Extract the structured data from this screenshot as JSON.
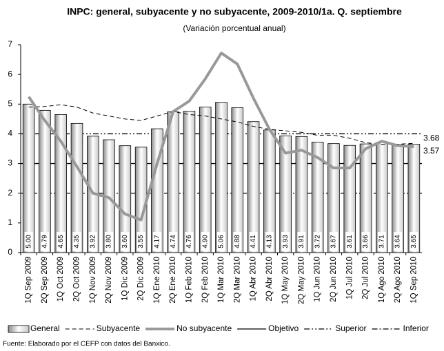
{
  "chart_data": {
    "type": "bar-line",
    "title": "INPC: general, subyacente y no subyacente, 2009-2010/1a. Q. septiembre",
    "subtitle": "(Variación porcentual anual)",
    "source": "Fuente: Elaborado por el CEFP con  datos del Banxico.",
    "categories": [
      "1Q Sep 2009",
      "2Q Sep 2009",
      "1Q Oct 2009",
      "2Q Oct 2009",
      "1Q Nov 2009",
      "2Q Nov 2009",
      "1Q Dic 2009",
      "2Q Dic 2009",
      "1Q Ene 2010",
      "2Q Ene 2010",
      "1Q Feb 2010",
      "2Q Feb 2010",
      "1Q Mar 2010",
      "2Q Mar 2010",
      "1Q Abr 2010",
      "2Q Abr 2010",
      "1Q May 2010",
      "2Q May 2010",
      "1Q Jun 2010",
      "2Q Jun 2010",
      "1Q Jul 2010",
      "2Q Jul 2010",
      "1Q Ago 2010",
      "2Q Ago 2010",
      "1Q Sep 2010"
    ],
    "series": [
      {
        "name": "General",
        "kind": "bar",
        "color": "#bbbbbb",
        "values": [
          5.0,
          4.79,
          4.65,
          4.35,
          3.92,
          3.8,
          3.6,
          3.55,
          4.17,
          4.74,
          4.76,
          4.9,
          5.06,
          4.88,
          4.41,
          4.13,
          3.93,
          3.91,
          3.72,
          3.67,
          3.61,
          3.66,
          3.71,
          3.64,
          3.65
        ],
        "value_labels": [
          "5.00",
          "4.79",
          "4.65",
          "4.35",
          "3.92",
          "3.80",
          "3.60",
          "3.55",
          "4.17",
          "4.74",
          "4.76",
          "4.90",
          "5.06",
          "4.88",
          "4.41",
          "4.13",
          "3.93",
          "3.91",
          "3.72",
          "3.67",
          "3.61",
          "3.66",
          "3.71",
          "3.64",
          "3.65"
        ]
      },
      {
        "name": "Subyacente",
        "kind": "line",
        "color": "#000000",
        "dash": "6 4",
        "width": 1,
        "end_label": true,
        "values": [
          4.9,
          4.92,
          4.98,
          4.9,
          4.7,
          4.6,
          4.5,
          4.45,
          4.6,
          4.75,
          4.65,
          4.6,
          4.5,
          4.4,
          4.25,
          4.15,
          4.1,
          4.05,
          3.95,
          3.95,
          3.85,
          3.7,
          3.65,
          3.65,
          3.68
        ]
      },
      {
        "name": "No subyacente",
        "kind": "line",
        "color": "#999999",
        "dash": "none",
        "width": 4,
        "end_label": true,
        "values": [
          5.25,
          4.45,
          3.75,
          2.9,
          2.0,
          1.85,
          1.3,
          1.1,
          3.0,
          4.75,
          5.1,
          5.85,
          6.72,
          6.35,
          5.2,
          4.15,
          3.35,
          3.45,
          3.2,
          2.85,
          2.85,
          3.5,
          3.75,
          3.6,
          3.57
        ]
      },
      {
        "name": "Objetivo",
        "kind": "hline",
        "color": "#000000",
        "dash": "none",
        "width": 1.3,
        "value": 3
      },
      {
        "name": "Superior",
        "kind": "hline",
        "color": "#000000",
        "dash": "8 3 2 3 2 3",
        "width": 1.3,
        "value": 4
      },
      {
        "name": "Inferior",
        "kind": "hline",
        "color": "#000000",
        "dash": "8 3 2 3",
        "width": 1.3,
        "value": 2
      }
    ],
    "ylim": [
      0,
      7
    ],
    "yticks": [
      0,
      1,
      2,
      3,
      4,
      5,
      6,
      7
    ]
  }
}
